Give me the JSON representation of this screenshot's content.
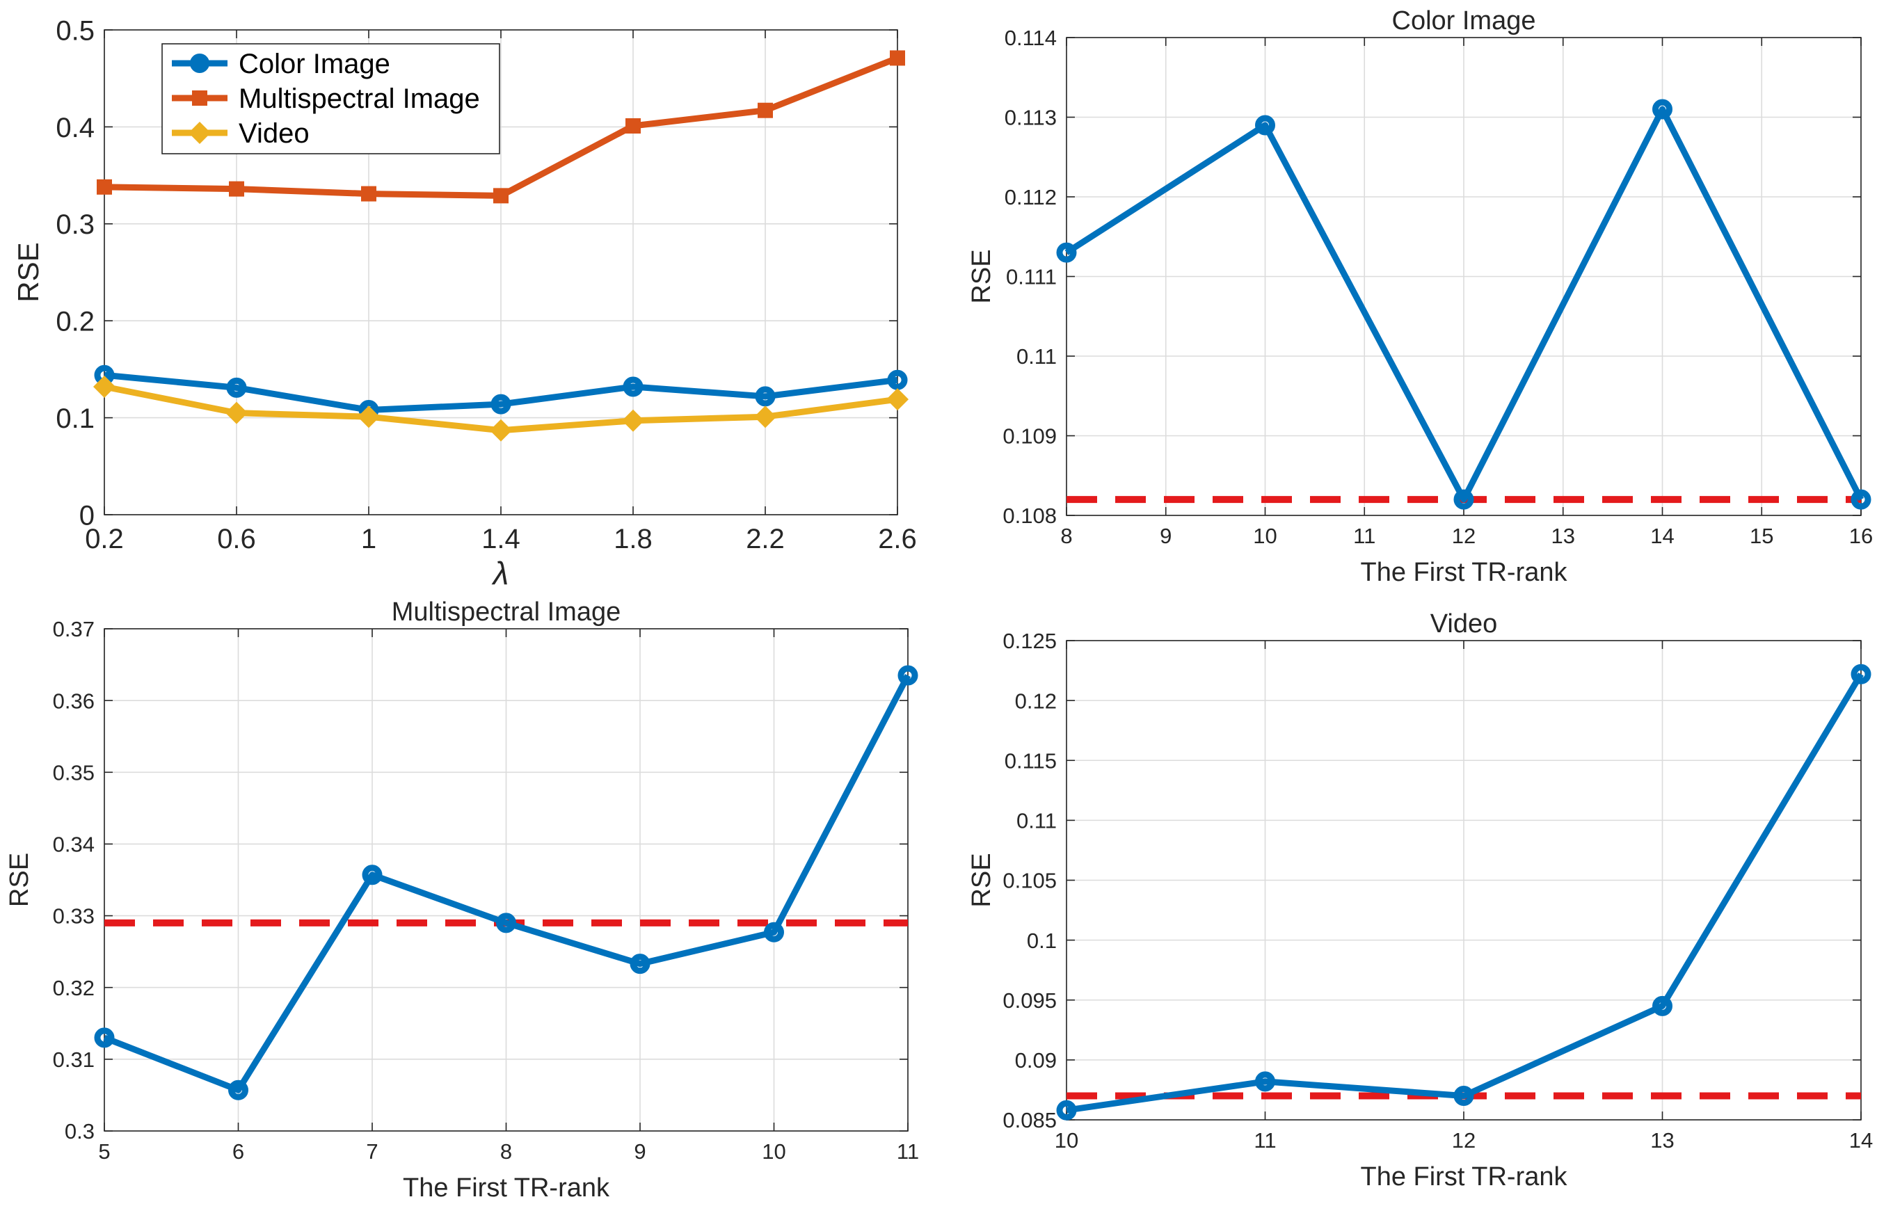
{
  "colors": {
    "blue": "#0072BD",
    "orange": "#D95319",
    "yellow": "#EDB120",
    "red": "#E41A1C"
  },
  "chart_data": [
    {
      "type": "line",
      "title": "",
      "xlabel": "λ",
      "ylabel": "RSE",
      "x": [
        0.2,
        0.6,
        1,
        1.4,
        1.8,
        2.2,
        2.6
      ],
      "x_tick_labels": [
        "0.2",
        "0.6",
        "1",
        "1.4",
        "1.8",
        "2.2",
        "2.6"
      ],
      "y_tick_labels": [
        "0",
        "0.1",
        "0.2",
        "0.3",
        "0.4",
        "0.5"
      ],
      "y_ticks": [
        0,
        0.1,
        0.2,
        0.3,
        0.4,
        0.5
      ],
      "xlim": [
        0.2,
        2.6
      ],
      "ylim": [
        0,
        0.5
      ],
      "grid": true,
      "legend_position": "top-left",
      "series": [
        {
          "name": "Color Image",
          "color": "#0072BD",
          "marker": "circle",
          "values": [
            0.144,
            0.131,
            0.108,
            0.114,
            0.132,
            0.122,
            0.139
          ]
        },
        {
          "name": "Multispectral Image",
          "color": "#D95319",
          "marker": "square",
          "values": [
            0.338,
            0.336,
            0.331,
            0.329,
            0.401,
            0.417,
            0.471
          ]
        },
        {
          "name": "Video",
          "color": "#EDB120",
          "marker": "diamond",
          "values": [
            0.132,
            0.105,
            0.101,
            0.087,
            0.097,
            0.101,
            0.119
          ]
        }
      ]
    },
    {
      "type": "line",
      "title": "Color Image",
      "xlabel": "The First TR-rank",
      "ylabel": "RSE",
      "x": [
        8,
        10,
        12,
        14,
        16
      ],
      "x_tick_labels": [
        "8",
        "9",
        "10",
        "11",
        "12",
        "13",
        "14",
        "15",
        "16"
      ],
      "x_ticks": [
        8,
        9,
        10,
        11,
        12,
        13,
        14,
        15,
        16
      ],
      "y_tick_labels": [
        "0.108",
        "0.109",
        "0.11",
        "0.111",
        "0.112",
        "0.113",
        "0.114"
      ],
      "y_ticks": [
        0.108,
        0.109,
        0.11,
        0.111,
        0.112,
        0.113,
        0.114
      ],
      "xlim": [
        8,
        16
      ],
      "ylim": [
        0.108,
        0.114
      ],
      "grid": true,
      "reference_line": {
        "value": 0.1082,
        "style": "dashed",
        "color": "#E41A1C"
      },
      "series": [
        {
          "name": "RSE",
          "color": "#0072BD",
          "marker": "circle",
          "values": [
            0.1113,
            0.1129,
            0.1082,
            0.1131,
            0.1082
          ]
        }
      ]
    },
    {
      "type": "line",
      "title": "Multispectral Image",
      "xlabel": "The First TR-rank",
      "ylabel": "RSE",
      "x": [
        5,
        6,
        7,
        8,
        9,
        10,
        11
      ],
      "x_tick_labels": [
        "5",
        "6",
        "7",
        "8",
        "9",
        "10",
        "11"
      ],
      "x_ticks": [
        5,
        6,
        7,
        8,
        9,
        10,
        11
      ],
      "y_tick_labels": [
        "0.3",
        "0.31",
        "0.32",
        "0.33",
        "0.34",
        "0.35",
        "0.36",
        "0.37"
      ],
      "y_ticks": [
        0.3,
        0.31,
        0.32,
        0.33,
        0.34,
        0.35,
        0.36,
        0.37
      ],
      "xlim": [
        5,
        11
      ],
      "ylim": [
        0.3,
        0.37
      ],
      "grid": true,
      "reference_line": {
        "value": 0.329,
        "style": "dashed",
        "color": "#E41A1C"
      },
      "series": [
        {
          "name": "RSE",
          "color": "#0072BD",
          "marker": "circle",
          "values": [
            0.313,
            0.3057,
            0.3357,
            0.329,
            0.3233,
            0.3277,
            0.3635
          ]
        }
      ]
    },
    {
      "type": "line",
      "title": "Video",
      "xlabel": "The First TR-rank",
      "ylabel": "RSE",
      "x": [
        10,
        11,
        12,
        13,
        14
      ],
      "x_tick_labels": [
        "10",
        "11",
        "12",
        "13",
        "14"
      ],
      "x_ticks": [
        10,
        11,
        12,
        13,
        14
      ],
      "y_tick_labels": [
        "0.085",
        "0.09",
        "0.095",
        "0.1",
        "0.105",
        "0.11",
        "0.115",
        "0.12",
        "0.125"
      ],
      "y_ticks": [
        0.085,
        0.09,
        0.095,
        0.1,
        0.105,
        0.11,
        0.115,
        0.12,
        0.125
      ],
      "xlim": [
        10,
        14
      ],
      "ylim": [
        0.085,
        0.125
      ],
      "grid": true,
      "reference_line": {
        "value": 0.087,
        "style": "dashed",
        "color": "#E41A1C"
      },
      "series": [
        {
          "name": "RSE",
          "color": "#0072BD",
          "marker": "circle",
          "values": [
            0.0858,
            0.0882,
            0.087,
            0.0945,
            0.1222
          ]
        }
      ]
    }
  ]
}
